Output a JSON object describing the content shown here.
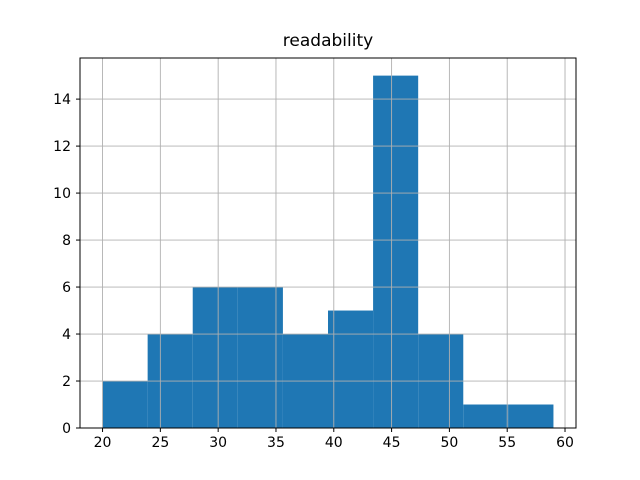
{
  "chart_data": {
    "type": "bar",
    "subtype": "histogram",
    "title": "readability",
    "xlabel": "",
    "ylabel": "",
    "bin_edges": [
      20.0,
      23.9,
      27.8,
      31.7,
      35.6,
      39.5,
      43.4,
      47.3,
      51.2,
      55.1,
      59.0
    ],
    "counts": [
      2,
      4,
      6,
      6,
      4,
      5,
      15,
      4,
      1,
      1
    ],
    "xlim": [
      18.05,
      60.95
    ],
    "ylim": [
      0,
      15.75
    ],
    "x_ticks": [
      20,
      25,
      30,
      35,
      40,
      45,
      50,
      55,
      60
    ],
    "y_ticks": [
      0,
      2,
      4,
      6,
      8,
      10,
      12,
      14
    ],
    "grid": true,
    "legend": "none",
    "bar_color": "#1f77b4",
    "grid_color": "#b0b0b0",
    "spine_color": "#000000",
    "background_color": "#ffffff"
  }
}
